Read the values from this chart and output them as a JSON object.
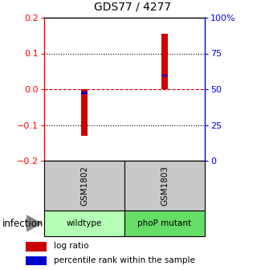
{
  "title": "GDS77 / 4277",
  "samples": [
    "GSM1802",
    "GSM1803"
  ],
  "group_labels": [
    "wildtype",
    "phoP mutant"
  ],
  "group_colors_wildtype": "#b3ffb3",
  "group_colors_phop": "#66dd66",
  "log_ratios": [
    -0.13,
    0.155
  ],
  "percentile_ranks": [
    0.475,
    0.595
  ],
  "bar_color": "#cc0000",
  "pct_color": "#0000cc",
  "ylim": [
    -0.2,
    0.2
  ],
  "yticks_left": [
    -0.2,
    -0.1,
    0,
    0.1,
    0.2
  ],
  "yticks_right": [
    0,
    25,
    50,
    75,
    100
  ],
  "hline_dotted": [
    -0.1,
    0.1
  ],
  "hline_zero_color": "#cc0000",
  "bar_width": 0.08,
  "infection_label": "infection",
  "legend_items": [
    {
      "color": "#cc0000",
      "label": "log ratio"
    },
    {
      "color": "#0000cc",
      "label": "percentile rank within the sample"
    }
  ],
  "bg_sample_header": "#c8c8c8",
  "infection_arrow_color": "#888888"
}
